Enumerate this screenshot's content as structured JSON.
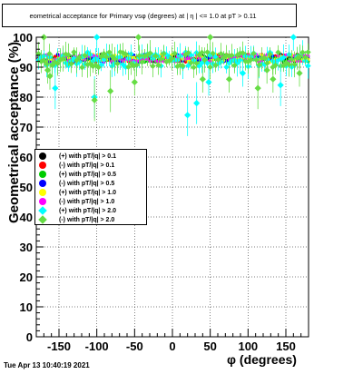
{
  "chart_data": {
    "type": "scatter",
    "title": "eometrical acceptance for Primary vsφ (degrees) at | η | <= 1.0 at pT > 0.11",
    "xlabel": "φ (degrees)",
    "ylabel": "Geometrical acceptance (%)",
    "xlim": [
      -180,
      180
    ],
    "ylim": [
      0,
      100
    ],
    "x_ticks": [
      "-150",
      "-100",
      "-50",
      "0",
      "50",
      "100",
      "150"
    ],
    "y_ticks": [
      "0",
      "10",
      "20",
      "30",
      "40",
      "50",
      "60",
      "70",
      "80",
      "90",
      "100"
    ],
    "grid": true,
    "legend_position": "left-middle",
    "series": [
      {
        "name": "(+) with pT/|q| > 0.1",
        "marker": "circle",
        "color": "#000000",
        "mean": 93.0
      },
      {
        "name": "(-) with pT/|q| > 0.1",
        "marker": "circle",
        "color": "#ff0000",
        "mean": 93.0
      },
      {
        "name": "(+) with pT/|q| > 0.5",
        "marker": "circle",
        "color": "#00cc00",
        "mean": 93.0
      },
      {
        "name": "(-) with pT/|q| > 0.5",
        "marker": "circle",
        "color": "#0000ff",
        "mean": 93.0
      },
      {
        "name": "(+) with pT/|q| > 1.0",
        "marker": "circle",
        "color": "#ffff00",
        "mean": 93.0
      },
      {
        "name": "(-) with pT/|q| > 1.0",
        "marker": "circle",
        "color": "#ff00ff",
        "mean": 93.0
      },
      {
        "name": "(+) with pT/|q| > 2.0",
        "marker": "diamond",
        "color": "#00ffff",
        "mean": 92.5
      },
      {
        "name": "(-) with pT/|q| > 2.0",
        "marker": "diamond",
        "color": "#66dd44",
        "mean": 92.5
      }
    ],
    "outliers": [
      {
        "series": 6,
        "x": 20,
        "y": 74
      },
      {
        "series": 6,
        "x": 32,
        "y": 78
      },
      {
        "series": 6,
        "x": 48,
        "y": 85
      },
      {
        "series": 6,
        "x": 93,
        "y": 88
      },
      {
        "series": 6,
        "x": 143,
        "y": 84
      },
      {
        "series": 6,
        "x": -103,
        "y": 80
      },
      {
        "series": 6,
        "x": -155,
        "y": 83
      },
      {
        "series": 6,
        "x": 160,
        "y": 100
      },
      {
        "series": 6,
        "x": -100,
        "y": 100
      },
      {
        "series": 7,
        "x": -103,
        "y": 79
      },
      {
        "series": 7,
        "x": -162,
        "y": 87
      },
      {
        "series": 7,
        "x": -165,
        "y": 89
      },
      {
        "series": 7,
        "x": -82,
        "y": 82
      },
      {
        "series": 7,
        "x": -50,
        "y": 85
      },
      {
        "series": 7,
        "x": 40,
        "y": 86
      },
      {
        "series": 7,
        "x": 75,
        "y": 86
      },
      {
        "series": 7,
        "x": 113,
        "y": 83
      },
      {
        "series": 7,
        "x": 125,
        "y": 89
      },
      {
        "series": 7,
        "x": 133,
        "y": 86
      },
      {
        "series": 7,
        "x": 168,
        "y": 88
      },
      {
        "series": 7,
        "x": -170,
        "y": 100
      },
      {
        "series": 7,
        "x": -45,
        "y": 100
      },
      {
        "series": 7,
        "x": 50,
        "y": 100
      }
    ]
  },
  "footer": {
    "timestamp": "Tue Apr 13 10:40:19 2021"
  }
}
